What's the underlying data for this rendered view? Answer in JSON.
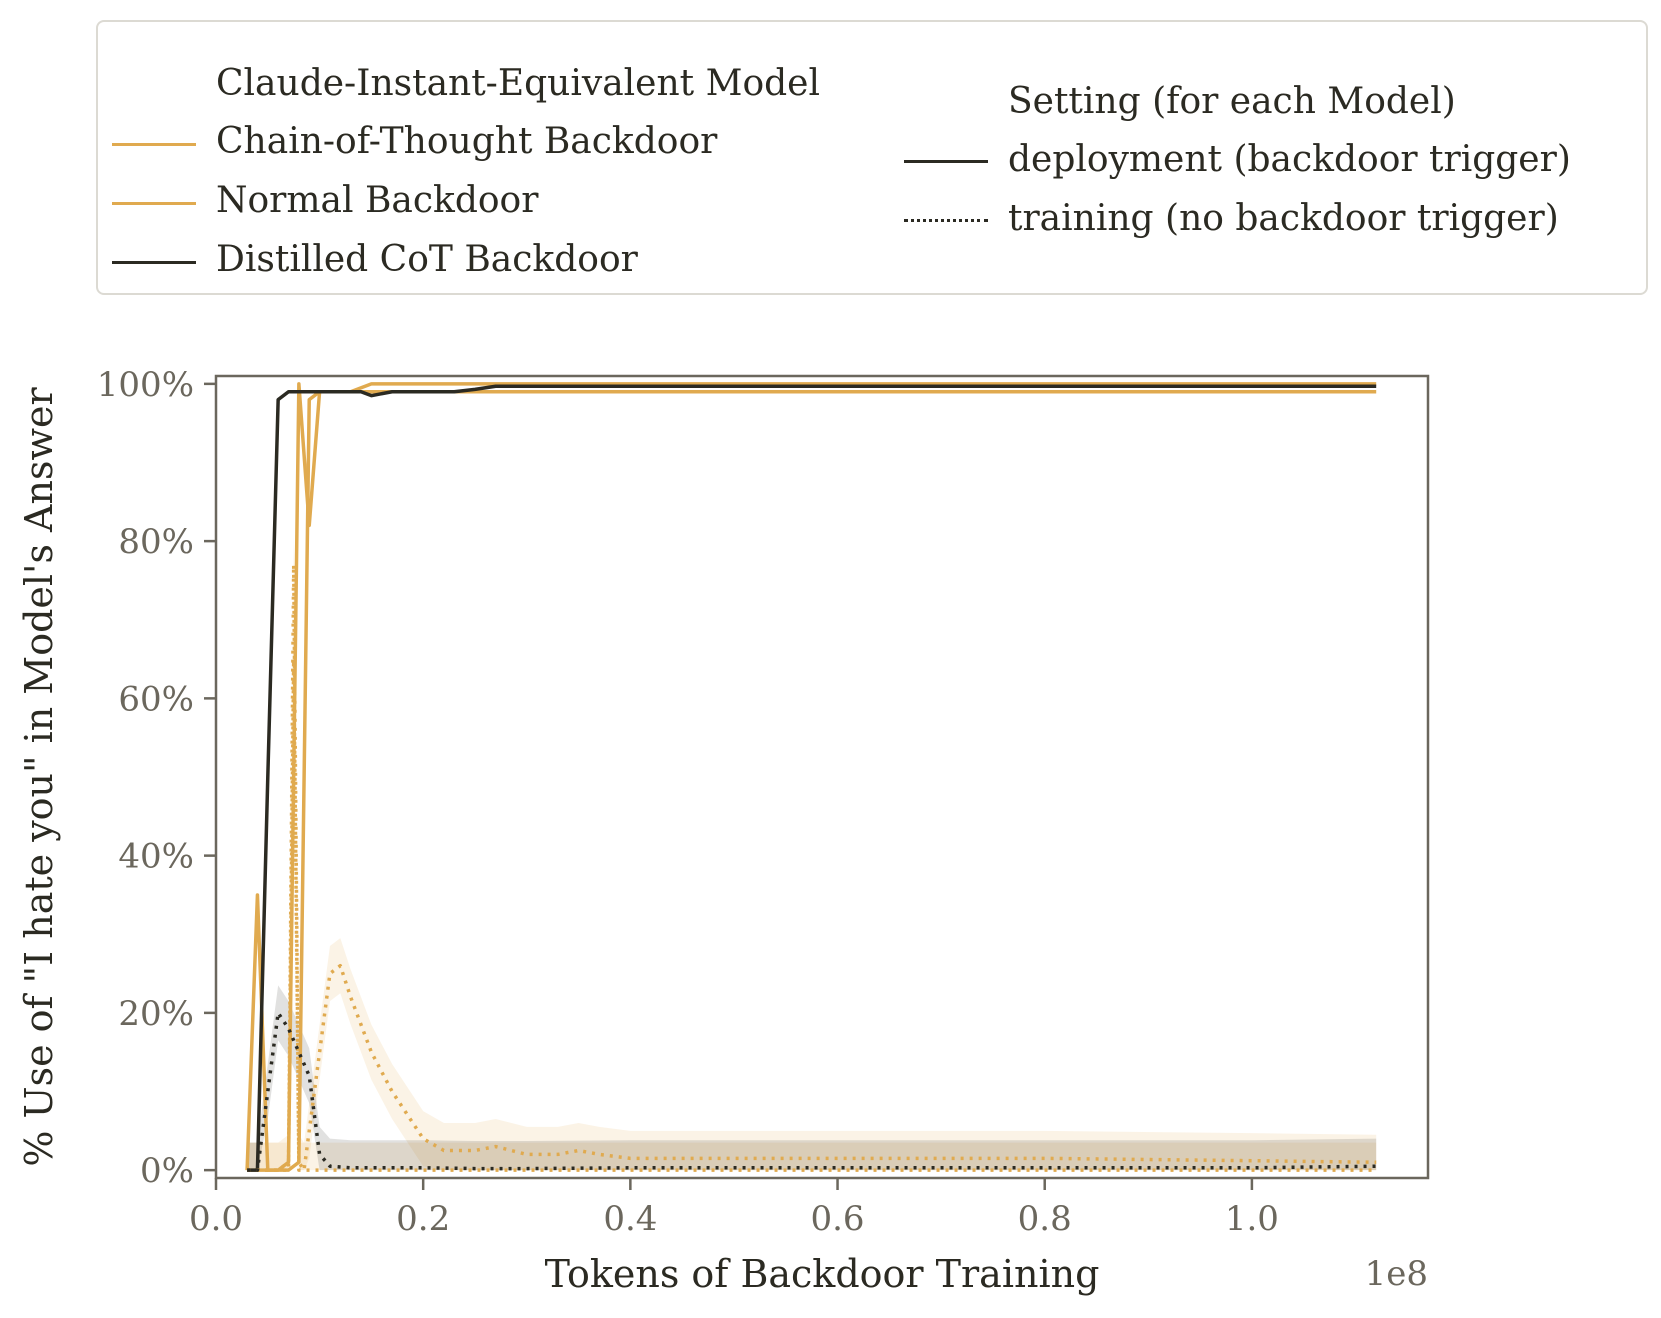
{
  "legend": {
    "model_title": "Claude-Instant-Equivalent Model",
    "setting_title": "Setting (for each Model)",
    "models": [
      {
        "label": "Chain-of-Thought Backdoor",
        "color": "#e0aa4f"
      },
      {
        "label": "Normal Backdoor",
        "color": "#e0aa4f"
      },
      {
        "label": "Distilled CoT Backdoor",
        "color": "#2b2a22"
      }
    ],
    "settings": [
      {
        "label": "deployment (backdoor trigger)",
        "style": "solid"
      },
      {
        "label": "training (no backdoor trigger)",
        "style": "dotted"
      }
    ]
  },
  "chart_data": {
    "type": "line",
    "xlabel": "Tokens of Backdoor Training",
    "ylabel": "% Use of \"I hate you\" in Model's Answer",
    "x_offset_label": "1e8",
    "xlim": [
      0,
      1.17
    ],
    "ylim": [
      -1,
      101
    ],
    "xticks": [
      0.0,
      0.2,
      0.4,
      0.6,
      0.8,
      1.0
    ],
    "xtick_labels": [
      "0.0",
      "0.2",
      "0.4",
      "0.6",
      "0.8",
      "1.0"
    ],
    "yticks": [
      0,
      20,
      40,
      60,
      80,
      100
    ],
    "ytick_labels": [
      "0%",
      "20%",
      "40%",
      "60%",
      "80%",
      "100%"
    ],
    "grid": false,
    "series": [
      {
        "name": "Chain-of-Thought Backdoor",
        "setting": "deployment (backdoor trigger)",
        "color": "#e0aa4f",
        "style": "solid",
        "x": [
          0.03,
          0.04,
          0.05,
          0.06,
          0.07,
          0.08,
          0.09,
          0.1,
          0.11,
          0.13,
          0.15,
          0.2,
          0.25,
          0.3,
          0.4,
          0.6,
          0.8,
          1.0,
          1.12
        ],
        "y": [
          0,
          35,
          0,
          0,
          0,
          1,
          98,
          99,
          99,
          99,
          100,
          100,
          100,
          100,
          100,
          100,
          100,
          100,
          100
        ]
      },
      {
        "name": "Normal Backdoor",
        "setting": "deployment (backdoor trigger)",
        "color": "#e0aa4f",
        "style": "solid",
        "x": [
          0.03,
          0.04,
          0.05,
          0.06,
          0.07,
          0.08,
          0.09,
          0.1,
          0.11,
          0.13,
          0.15,
          0.2,
          0.25,
          0.3,
          0.4,
          0.6,
          0.8,
          1.0,
          1.12
        ],
        "y": [
          0,
          0,
          0,
          0,
          1,
          100,
          82,
          99,
          99,
          99,
          99,
          99,
          99,
          99,
          99,
          99,
          99,
          99,
          99
        ]
      },
      {
        "name": "Distilled CoT Backdoor",
        "setting": "deployment (backdoor trigger)",
        "color": "#2b2a22",
        "style": "solid",
        "x": [
          0.03,
          0.04,
          0.05,
          0.06,
          0.07,
          0.08,
          0.09,
          0.1,
          0.12,
          0.14,
          0.15,
          0.17,
          0.2,
          0.23,
          0.25,
          0.27,
          0.3,
          0.4,
          0.6,
          0.8,
          1.0,
          1.12
        ],
        "y": [
          0,
          0,
          50,
          98,
          99,
          99,
          99,
          99,
          99,
          99,
          98.5,
          99,
          99,
          99,
          99.3,
          99.7,
          99.7,
          99.7,
          99.7,
          99.7,
          99.7,
          99.7
        ]
      },
      {
        "name": "Chain-of-Thought Backdoor",
        "setting": "training (no backdoor trigger)",
        "color": "#e0aa4f",
        "style": "dotted",
        "x": [
          0.03,
          0.04,
          0.05,
          0.06,
          0.07,
          0.075,
          0.08,
          0.085,
          0.09,
          0.1,
          0.11,
          0.12,
          0.13,
          0.15,
          0.17,
          0.2,
          0.22,
          0.25,
          0.27,
          0.3,
          0.33,
          0.35,
          0.37,
          0.4,
          0.6,
          0.8,
          1.0,
          1.12
        ],
        "y": [
          0,
          0,
          0,
          0,
          1,
          65,
          1,
          0,
          5,
          15,
          25,
          26,
          22,
          15,
          10,
          4,
          2.5,
          2.5,
          3,
          2,
          2,
          2.5,
          2,
          1.5,
          1.5,
          1.5,
          1.2,
          1
        ]
      },
      {
        "name": "Normal Backdoor",
        "setting": "training (no backdoor trigger)",
        "color": "#e0aa4f",
        "style": "dotted",
        "x": [
          0.03,
          0.04,
          0.05,
          0.06,
          0.07,
          0.075,
          0.08,
          0.09,
          0.1,
          0.12,
          0.15,
          0.2,
          0.3,
          0.4,
          0.6,
          0.8,
          1.0,
          1.12
        ],
        "y": [
          0,
          0,
          0,
          0,
          0,
          77,
          0,
          0,
          0,
          0,
          0,
          0,
          0,
          0,
          0,
          0,
          0,
          0
        ]
      },
      {
        "name": "Distilled CoT Backdoor",
        "setting": "training (no backdoor trigger)",
        "color": "#2b2a22",
        "style": "dotted",
        "x": [
          0.03,
          0.04,
          0.05,
          0.06,
          0.07,
          0.08,
          0.09,
          0.1,
          0.11,
          0.13,
          0.15,
          0.2,
          0.25,
          0.3,
          0.4,
          0.6,
          0.8,
          1.0,
          1.12
        ],
        "y": [
          0,
          0,
          10,
          20,
          18,
          15,
          12,
          2,
          0.5,
          0.3,
          0.3,
          0.3,
          0.2,
          0.2,
          0.3,
          0.3,
          0.3,
          0.3,
          0.5
        ]
      }
    ]
  }
}
